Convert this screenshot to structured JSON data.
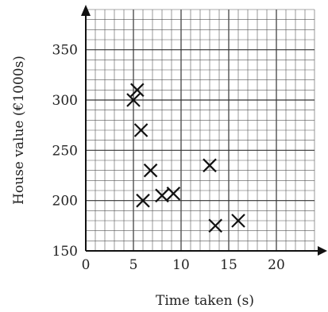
{
  "chart_data": {
    "type": "scatter",
    "title": "",
    "xlabel": "Time taken (s)",
    "ylabel": "House value (€1000s)",
    "xlim": [
      0,
      24
    ],
    "ylim": [
      150,
      390
    ],
    "xticks": [
      0,
      5,
      10,
      15,
      20
    ],
    "yticks": [
      150,
      200,
      250,
      300,
      350
    ],
    "grid": true,
    "marker": "x",
    "colors": {
      "major_grid": "#333333",
      "minor_grid": "#555555",
      "axis": "#111111",
      "marker": "#111111"
    },
    "points": [
      {
        "x": 5.0,
        "y": 300
      },
      {
        "x": 5.4,
        "y": 310
      },
      {
        "x": 5.8,
        "y": 270
      },
      {
        "x": 6.0,
        "y": 200
      },
      {
        "x": 6.8,
        "y": 230
      },
      {
        "x": 8.0,
        "y": 205
      },
      {
        "x": 9.2,
        "y": 207
      },
      {
        "x": 13.0,
        "y": 235
      },
      {
        "x": 13.6,
        "y": 175
      },
      {
        "x": 16.0,
        "y": 180
      }
    ]
  }
}
